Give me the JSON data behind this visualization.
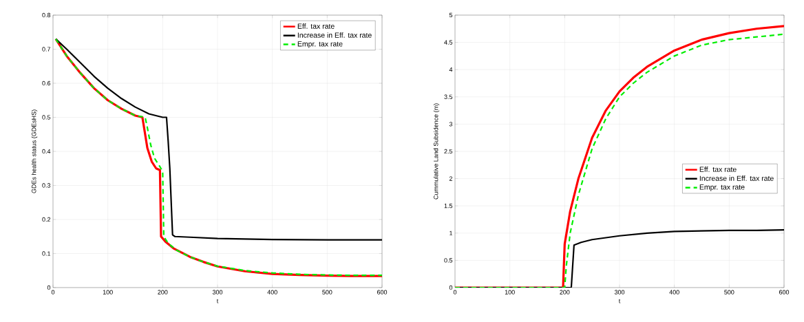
{
  "chart_data": [
    {
      "type": "line",
      "xlabel": "t",
      "ylabel": "GDEs health status (GDEsHS)",
      "xlim": [
        0,
        600
      ],
      "ylim": [
        0,
        0.8
      ],
      "xticks": [
        0,
        100,
        200,
        300,
        400,
        500,
        600
      ],
      "yticks": [
        0,
        0.1,
        0.2,
        0.3,
        0.4,
        0.5,
        0.6,
        0.7,
        0.8
      ],
      "grid": true,
      "legend": "top right",
      "series": [
        {
          "name": "Eff. tax rate",
          "color": "#ff0000",
          "line_style": "solid",
          "x": [
            5,
            25,
            50,
            75,
            100,
            125,
            150,
            163,
            167,
            172,
            180,
            188,
            195,
            197,
            205,
            220,
            250,
            275,
            300,
            350,
            400,
            450,
            500,
            550,
            600
          ],
          "values": [
            0.73,
            0.68,
            0.63,
            0.585,
            0.55,
            0.525,
            0.505,
            0.5,
            0.46,
            0.41,
            0.37,
            0.35,
            0.345,
            0.15,
            0.135,
            0.115,
            0.09,
            0.075,
            0.062,
            0.048,
            0.04,
            0.037,
            0.035,
            0.034,
            0.034
          ]
        },
        {
          "name": "Increase in Eff. tax rate",
          "color": "#000000",
          "line_style": "solid",
          "x": [
            5,
            25,
            50,
            75,
            100,
            125,
            150,
            175,
            200,
            207,
            210,
            213,
            218,
            222,
            250,
            300,
            400,
            500,
            600
          ],
          "values": [
            0.73,
            0.7,
            0.66,
            0.62,
            0.585,
            0.555,
            0.53,
            0.51,
            0.5,
            0.5,
            0.43,
            0.35,
            0.155,
            0.15,
            0.148,
            0.144,
            0.141,
            0.14,
            0.14
          ]
        },
        {
          "name": "Empr. tax rate",
          "color": "#00ee00",
          "line_style": "dashed",
          "x": [
            5,
            25,
            50,
            75,
            100,
            125,
            150,
            168,
            172,
            178,
            185,
            195,
            200,
            202,
            210,
            225,
            250,
            275,
            300,
            350,
            400,
            450,
            500,
            550,
            600
          ],
          "values": [
            0.73,
            0.68,
            0.63,
            0.585,
            0.55,
            0.525,
            0.505,
            0.5,
            0.47,
            0.42,
            0.38,
            0.355,
            0.34,
            0.15,
            0.13,
            0.11,
            0.09,
            0.075,
            0.063,
            0.05,
            0.043,
            0.039,
            0.037,
            0.036,
            0.036
          ]
        }
      ]
    },
    {
      "type": "line",
      "xlabel": "t",
      "ylabel": "Cummulative Land Subsidence (m)",
      "xlim": [
        0,
        600
      ],
      "ylim": [
        0,
        5
      ],
      "xticks": [
        0,
        100,
        200,
        300,
        400,
        500,
        600
      ],
      "yticks": [
        0,
        0.5,
        1,
        1.5,
        2,
        2.5,
        3,
        3.5,
        4,
        4.5,
        5
      ],
      "grid": true,
      "legend": "right",
      "series": [
        {
          "name": "Eff. tax rate",
          "color": "#ff0000",
          "line_style": "solid",
          "x": [
            0,
            197,
            200,
            205,
            210,
            225,
            250,
            275,
            300,
            325,
            350,
            400,
            450,
            500,
            550,
            600
          ],
          "values": [
            0,
            0,
            0.8,
            1.1,
            1.4,
            2.0,
            2.75,
            3.25,
            3.6,
            3.85,
            4.05,
            4.35,
            4.55,
            4.67,
            4.75,
            4.8
          ]
        },
        {
          "name": "Increase in Eff. tax rate",
          "color": "#000000",
          "line_style": "solid",
          "x": [
            0,
            212,
            217,
            230,
            250,
            300,
            350,
            400,
            450,
            500,
            550,
            600
          ],
          "values": [
            0,
            0,
            0.78,
            0.83,
            0.88,
            0.95,
            1.0,
            1.03,
            1.04,
            1.05,
            1.05,
            1.06
          ]
        },
        {
          "name": "Empr. tax rate",
          "color": "#00ee00",
          "line_style": "dashed",
          "x": [
            0,
            200,
            203,
            210,
            225,
            250,
            275,
            300,
            325,
            350,
            400,
            450,
            500,
            550,
            600
          ],
          "values": [
            0,
            0,
            0.4,
            1.0,
            1.7,
            2.55,
            3.1,
            3.5,
            3.75,
            3.95,
            4.25,
            4.45,
            4.55,
            4.6,
            4.65
          ]
        }
      ]
    }
  ]
}
